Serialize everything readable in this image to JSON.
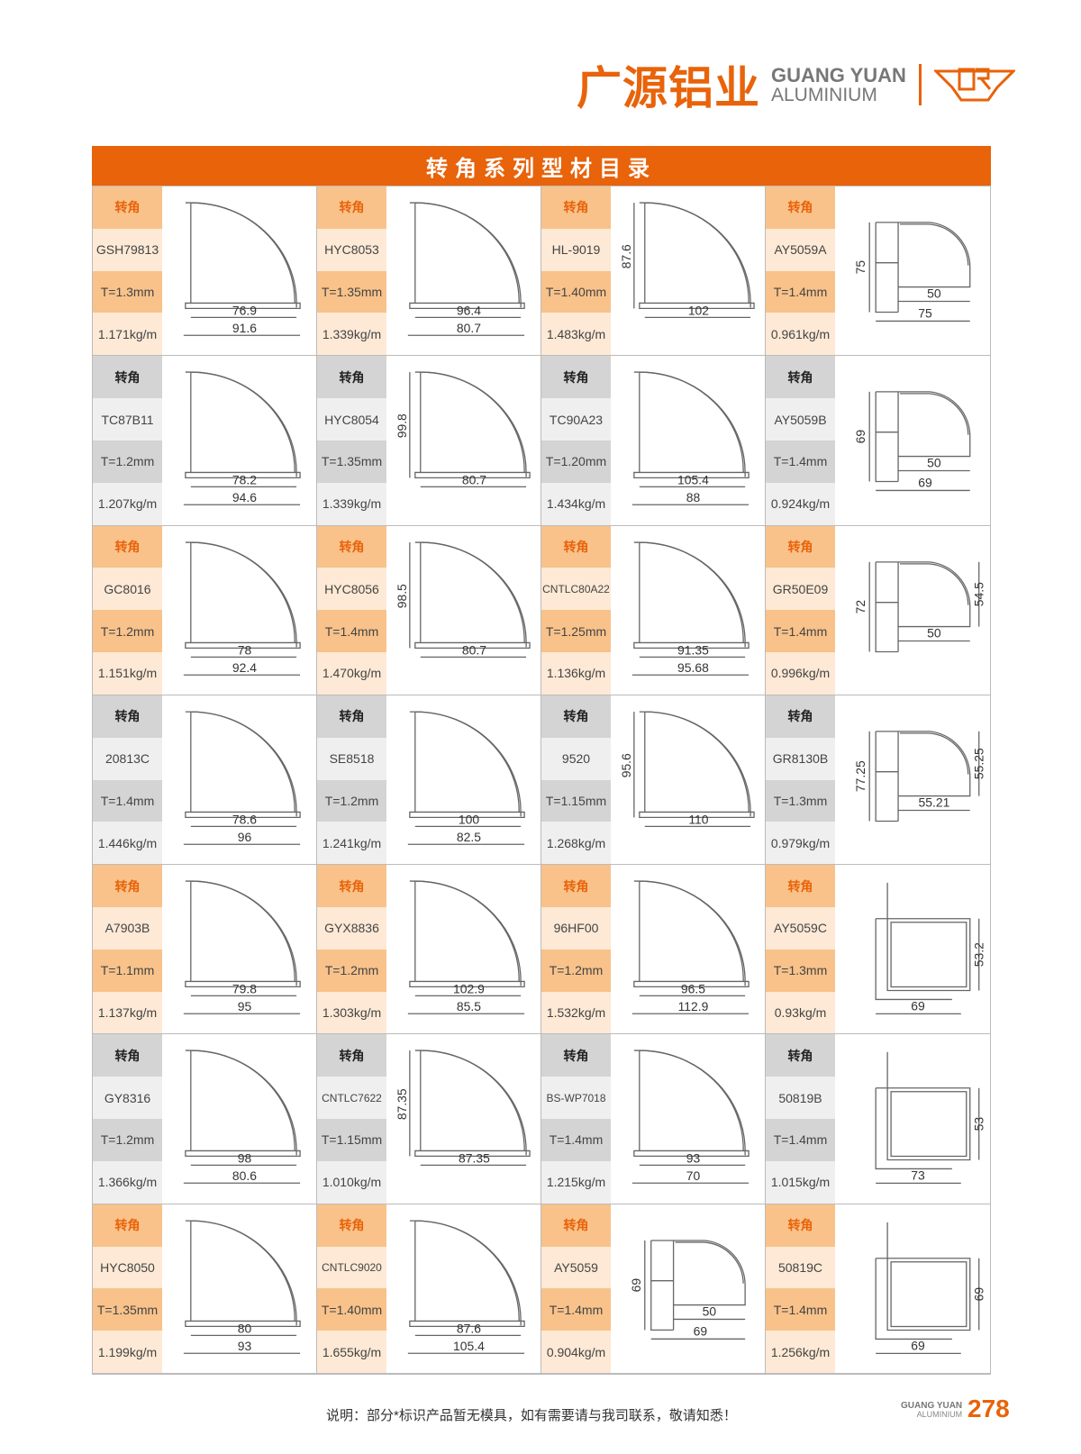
{
  "header": {
    "brand_cn": "广源铝业",
    "brand_en_1": "GUANG YUAN",
    "brand_en_2": "ALUMINIUM",
    "logo_mark": "CR",
    "accent": "#e8630a"
  },
  "title": "转角系列型材目录",
  "category_label": "转角",
  "items": [
    {
      "code": "GSH79813",
      "thickness": "T=1.3mm",
      "weight": "1.171kg/m",
      "style": "arc",
      "h": [
        "76.9",
        "91.6"
      ]
    },
    {
      "code": "HYC8053",
      "thickness": "T=1.35mm",
      "weight": "1.339kg/m",
      "style": "arc",
      "h": [
        "96.4",
        "80.7"
      ]
    },
    {
      "code": "HL-9019",
      "thickness": "T=1.40mm",
      "weight": "1.483kg/m",
      "style": "arc",
      "v": "87.6",
      "h": [
        "102"
      ]
    },
    {
      "code": "AY5059A",
      "thickness": "T=1.4mm",
      "weight": "0.961kg/m",
      "style": "box",
      "v": "75",
      "h": [
        "50",
        "75"
      ]
    },
    {
      "code": "TC87B11",
      "thickness": "T=1.2mm",
      "weight": "1.207kg/m",
      "style": "arc",
      "h": [
        "78.2",
        "94.6"
      ]
    },
    {
      "code": "HYC8054",
      "thickness": "T=1.35mm",
      "weight": "1.339kg/m",
      "style": "arc",
      "v": "99.8",
      "h": [
        "80.7"
      ]
    },
    {
      "code": "TC90A23",
      "thickness": "T=1.20mm",
      "weight": "1.434kg/m",
      "style": "arc",
      "h": [
        "105.4",
        "88"
      ]
    },
    {
      "code": "AY5059B",
      "thickness": "T=1.4mm",
      "weight": "0.924kg/m",
      "style": "box",
      "v": "69",
      "h": [
        "50",
        "69"
      ]
    },
    {
      "code": "GC8016",
      "thickness": "T=1.2mm",
      "weight": "1.151kg/m",
      "style": "arc",
      "h": [
        "78",
        "92.4"
      ]
    },
    {
      "code": "HYC8056",
      "thickness": "T=1.4mm",
      "weight": "1.470kg/m",
      "style": "arc",
      "v": "98.5",
      "h": [
        "80.7"
      ]
    },
    {
      "code": "CNTLC80A22",
      "thickness": "T=1.25mm",
      "weight": "1.136kg/m",
      "style": "arc",
      "h": [
        "91.35",
        "95.68"
      ]
    },
    {
      "code": "GR50E09",
      "thickness": "T=1.4mm",
      "weight": "0.996kg/m",
      "style": "box",
      "v": "72",
      "v2": "54.5",
      "h": [
        "50"
      ]
    },
    {
      "code": "20813C",
      "thickness": "T=1.4mm",
      "weight": "1.446kg/m",
      "style": "arc",
      "h": [
        "78.6",
        "96"
      ]
    },
    {
      "code": "SE8518",
      "thickness": "T=1.2mm",
      "weight": "1.241kg/m",
      "style": "arc",
      "h": [
        "100",
        "82.5"
      ]
    },
    {
      "code": "9520",
      "thickness": "T=1.15mm",
      "weight": "1.268kg/m",
      "style": "arc",
      "v": "95.6",
      "h": [
        "110"
      ]
    },
    {
      "code": "GR8130B",
      "thickness": "T=1.3mm",
      "weight": "0.979kg/m",
      "style": "box",
      "v": "77.25",
      "v2": "55.25",
      "h": [
        "55.21"
      ]
    },
    {
      "code": "A7903B",
      "thickness": "T=1.1mm",
      "weight": "1.137kg/m",
      "style": "arc",
      "h": [
        "79.8",
        "95"
      ]
    },
    {
      "code": "GYX8836",
      "thickness": "T=1.2mm",
      "weight": "1.303kg/m",
      "style": "arc",
      "h": [
        "102.9",
        "85.5"
      ]
    },
    {
      "code": "96HF00",
      "thickness": "T=1.2mm",
      "weight": "1.532kg/m",
      "style": "arc",
      "h": [
        "96.5",
        "112.9"
      ]
    },
    {
      "code": "AY5059C",
      "thickness": "T=1.3mm",
      "weight": "0.93kg/m",
      "style": "frame",
      "v2": "53.2",
      "h": [
        "69"
      ]
    },
    {
      "code": "GY8316",
      "thickness": "T=1.2mm",
      "weight": "1.366kg/m",
      "style": "arc",
      "h": [
        "98",
        "80.6"
      ]
    },
    {
      "code": "CNTLC7622",
      "thickness": "T=1.15mm",
      "weight": "1.010kg/m",
      "style": "arc",
      "v": "87.35",
      "h": [
        "87.35"
      ]
    },
    {
      "code": "BS-WP7018",
      "thickness": "T=1.4mm",
      "weight": "1.215kg/m",
      "style": "arc",
      "h": [
        "93",
        "70"
      ]
    },
    {
      "code": "50819B",
      "thickness": "T=1.4mm",
      "weight": "1.015kg/m",
      "style": "frame",
      "v2": "53",
      "h": [
        "73"
      ]
    },
    {
      "code": "HYC8050",
      "thickness": "T=1.35mm",
      "weight": "1.199kg/m",
      "style": "arc",
      "h": [
        "80",
        "93"
      ]
    },
    {
      "code": "CNTLC9020",
      "thickness": "T=1.40mm",
      "weight": "1.655kg/m",
      "style": "arc",
      "h": [
        "87.6",
        "105.4"
      ]
    },
    {
      "code": "AY5059",
      "thickness": "T=1.4mm",
      "weight": "0.904kg/m",
      "style": "box",
      "v": "69",
      "h": [
        "50",
        "69"
      ]
    },
    {
      "code": "50819C",
      "thickness": "T=1.4mm",
      "weight": "1.256kg/m",
      "style": "frame",
      "v2": "69",
      "h": [
        "69"
      ]
    }
  ],
  "footer": {
    "note": "说明：部分*标识产品暂无模具，如有需要请与我司联系，敬请知悉！",
    "brand_1": "GUANG YUAN",
    "brand_2": "ALUMINIUM",
    "page_number": "278"
  }
}
